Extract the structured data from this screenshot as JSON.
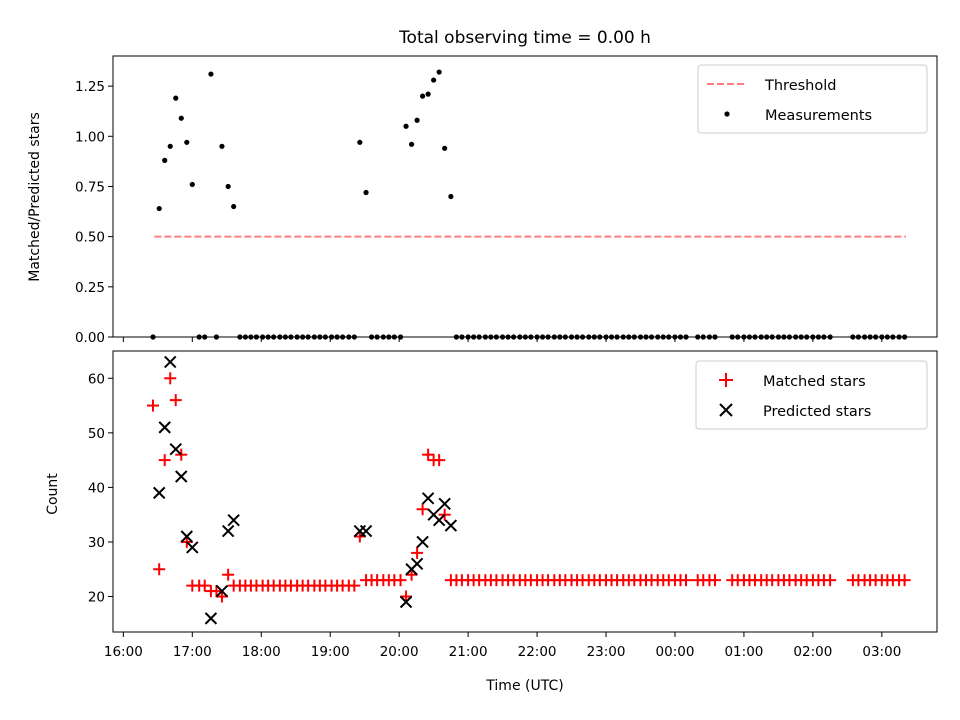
{
  "chart_data": [
    {
      "type": "scatter",
      "title": "Total observing time = 0.00 h",
      "xlabel": "",
      "ylabel": "Matched/Predicted stars",
      "ylim": [
        0,
        1.4
      ],
      "yticks": [
        0.0,
        0.25,
        0.5,
        0.75,
        1.0,
        1.25
      ],
      "ytick_labels": [
        "0.00",
        "0.25",
        "0.50",
        "0.75",
        "1.00",
        "1.25"
      ],
      "legend": {
        "position": "upper-right",
        "entries": [
          {
            "label": "Threshold",
            "style": "dashed-line",
            "color": "#ff7f7f"
          },
          {
            "label": "Measurements",
            "style": "dot",
            "color": "#000000"
          }
        ]
      },
      "threshold": {
        "value": 0.5,
        "x_start": 16.45,
        "x_end": 27.35,
        "color": "#ff7f7f"
      },
      "series": [
        {
          "name": "Measurements",
          "marker": "dot",
          "color": "#000000",
          "x": [
            16.43,
            16.52,
            16.6,
            16.68,
            16.76,
            16.84,
            16.92,
            17.0,
            17.1,
            17.18,
            17.27,
            17.35,
            17.43,
            17.52,
            17.6,
            17.69,
            17.77,
            17.85,
            17.93,
            18.02,
            18.1,
            18.18,
            18.27,
            18.35,
            18.43,
            18.52,
            18.6,
            18.68,
            18.77,
            18.85,
            18.93,
            19.02,
            19.1,
            19.18,
            19.27,
            19.35,
            19.43,
            19.52,
            19.6,
            19.68,
            19.77,
            19.85,
            19.93,
            20.02,
            20.1,
            20.18,
            20.26,
            20.34,
            20.42,
            20.5,
            20.58,
            20.66,
            20.75,
            20.83,
            20.91,
            21.0,
            21.08,
            21.16,
            21.25,
            21.33,
            21.41,
            21.5,
            21.58,
            21.66,
            21.75,
            21.83,
            21.91,
            22.0,
            22.08,
            22.16,
            22.25,
            22.33,
            22.41,
            22.5,
            22.58,
            22.66,
            22.75,
            22.83,
            22.91,
            23.0,
            23.08,
            23.16,
            23.25,
            23.33,
            23.41,
            23.5,
            23.58,
            23.66,
            23.75,
            23.83,
            23.91,
            24.0,
            24.08,
            24.16,
            24.33,
            24.41,
            24.5,
            24.58,
            24.83,
            24.91,
            25.0,
            25.08,
            25.16,
            25.25,
            25.33,
            25.41,
            25.5,
            25.58,
            25.66,
            25.75,
            25.83,
            25.91,
            26.0,
            26.08,
            26.16,
            26.25,
            26.58,
            26.66,
            26.75,
            26.83,
            26.91,
            27.0,
            27.08,
            27.16,
            27.25,
            27.33
          ],
          "y": [
            0.0,
            0.64,
            0.88,
            0.95,
            1.19,
            1.09,
            0.97,
            0.76,
            0.0,
            0.0,
            1.31,
            0.0,
            0.95,
            0.75,
            0.65,
            0.0,
            0.0,
            0.0,
            0.0,
            0.0,
            0.0,
            0.0,
            0.0,
            0.0,
            0.0,
            0.0,
            0.0,
            0.0,
            0.0,
            0.0,
            0.0,
            0.0,
            0.0,
            0.0,
            0.0,
            0.0,
            0.97,
            0.72,
            0.0,
            0.0,
            0.0,
            0.0,
            0.0,
            0.0,
            1.05,
            0.96,
            1.08,
            1.2,
            1.21,
            1.28,
            1.32,
            0.94,
            0.7,
            0.0,
            0.0,
            0.0,
            0.0,
            0.0,
            0.0,
            0.0,
            0.0,
            0.0,
            0.0,
            0.0,
            0.0,
            0.0,
            0.0,
            0.0,
            0.0,
            0.0,
            0.0,
            0.0,
            0.0,
            0.0,
            0.0,
            0.0,
            0.0,
            0.0,
            0.0,
            0.0,
            0.0,
            0.0,
            0.0,
            0.0,
            0.0,
            0.0,
            0.0,
            0.0,
            0.0,
            0.0,
            0.0,
            0.0,
            0.0,
            0.0,
            0.0,
            0.0,
            0.0,
            0.0,
            0.0,
            0.0,
            0.0,
            0.0,
            0.0,
            0.0,
            0.0,
            0.0,
            0.0,
            0.0,
            0.0,
            0.0,
            0.0,
            0.0,
            0.0,
            0.0,
            0.0,
            0.0,
            0.0,
            0.0,
            0.0,
            0.0,
            0.0,
            0.0,
            0.0,
            0.0,
            0.0,
            0.0
          ]
        }
      ]
    },
    {
      "type": "scatter",
      "title": "",
      "xlabel": "Time (UTC)",
      "ylabel": "Count",
      "ylim": [
        13.5,
        65
      ],
      "yticks": [
        20,
        30,
        40,
        50,
        60
      ],
      "ytick_labels": [
        "20",
        "30",
        "40",
        "50",
        "60"
      ],
      "xlim": [
        15.85,
        27.8
      ],
      "xticks": [
        16,
        17,
        18,
        19,
        20,
        21,
        22,
        23,
        24,
        25,
        26,
        27
      ],
      "xtick_labels": [
        "16:00",
        "17:00",
        "18:00",
        "19:00",
        "20:00",
        "21:00",
        "22:00",
        "23:00",
        "00:00",
        "01:00",
        "02:00",
        "03:00"
      ],
      "legend": {
        "position": "upper-right",
        "entries": [
          {
            "label": "Matched stars",
            "style": "plus",
            "color": "#ff0000"
          },
          {
            "label": "Predicted stars",
            "style": "x",
            "color": "#000000"
          }
        ]
      },
      "series": [
        {
          "name": "Matched stars",
          "marker": "plus",
          "color": "#ff0000",
          "x": [
            16.43,
            16.52,
            16.6,
            16.68,
            16.76,
            16.84,
            16.92,
            17.0,
            17.1,
            17.18,
            17.27,
            17.35,
            17.43,
            17.52,
            17.6,
            17.69,
            17.77,
            17.85,
            17.93,
            18.02,
            18.1,
            18.18,
            18.27,
            18.35,
            18.43,
            18.52,
            18.6,
            18.68,
            18.77,
            18.85,
            18.93,
            19.02,
            19.1,
            19.18,
            19.27,
            19.35,
            19.43,
            19.52,
            19.6,
            19.68,
            19.77,
            19.85,
            19.93,
            20.02,
            20.1,
            20.18,
            20.26,
            20.34,
            20.42,
            20.5,
            20.58,
            20.66,
            20.75,
            20.83,
            20.91,
            21.0,
            21.08,
            21.16,
            21.25,
            21.33,
            21.41,
            21.5,
            21.58,
            21.66,
            21.75,
            21.83,
            21.91,
            22.0,
            22.08,
            22.16,
            22.25,
            22.33,
            22.41,
            22.5,
            22.58,
            22.66,
            22.75,
            22.83,
            22.91,
            23.0,
            23.08,
            23.16,
            23.25,
            23.33,
            23.41,
            23.5,
            23.58,
            23.66,
            23.75,
            23.83,
            23.91,
            24.0,
            24.08,
            24.16,
            24.33,
            24.41,
            24.5,
            24.58,
            24.83,
            24.91,
            25.0,
            25.08,
            25.16,
            25.25,
            25.33,
            25.41,
            25.5,
            25.58,
            25.66,
            25.75,
            25.83,
            25.91,
            26.0,
            26.08,
            26.16,
            26.25,
            26.58,
            26.66,
            26.75,
            26.83,
            26.91,
            27.0,
            27.08,
            27.16,
            27.25,
            27.33
          ],
          "y": [
            55,
            25,
            45,
            60,
            56,
            46,
            30,
            22,
            22,
            22,
            21,
            21,
            20,
            24,
            22,
            22,
            22,
            22,
            22,
            22,
            22,
            22,
            22,
            22,
            22,
            22,
            22,
            22,
            22,
            22,
            22,
            22,
            22,
            22,
            22,
            22,
            31,
            23,
            23,
            23,
            23,
            23,
            23,
            23,
            20,
            24,
            28,
            36,
            46,
            45,
            45,
            35,
            23,
            23,
            23,
            23,
            23,
            23,
            23,
            23,
            23,
            23,
            23,
            23,
            23,
            23,
            23,
            23,
            23,
            23,
            23,
            23,
            23,
            23,
            23,
            23,
            23,
            23,
            23,
            23,
            23,
            23,
            23,
            23,
            23,
            23,
            23,
            23,
            23,
            23,
            23,
            23,
            23,
            23,
            23,
            23,
            23,
            23,
            23,
            23,
            23,
            23,
            23,
            23,
            23,
            23,
            23,
            23,
            23,
            23,
            23,
            23,
            23,
            23,
            23,
            23,
            23,
            23,
            23,
            23,
            23,
            23,
            23,
            23,
            23,
            23
          ]
        },
        {
          "name": "Predicted stars",
          "marker": "x",
          "color": "#000000",
          "x": [
            16.52,
            16.6,
            16.68,
            16.76,
            16.84,
            16.92,
            17.0,
            17.27,
            17.43,
            17.52,
            17.6,
            19.43,
            19.52,
            20.1,
            20.18,
            20.26,
            20.34,
            20.42,
            20.5,
            20.58,
            20.66,
            20.75
          ],
          "y": [
            39,
            51,
            63,
            47,
            42,
            31,
            29,
            16,
            21,
            32,
            34,
            32,
            32,
            19,
            25,
            26,
            30,
            38,
            35,
            34,
            37,
            33
          ]
        }
      ]
    }
  ]
}
